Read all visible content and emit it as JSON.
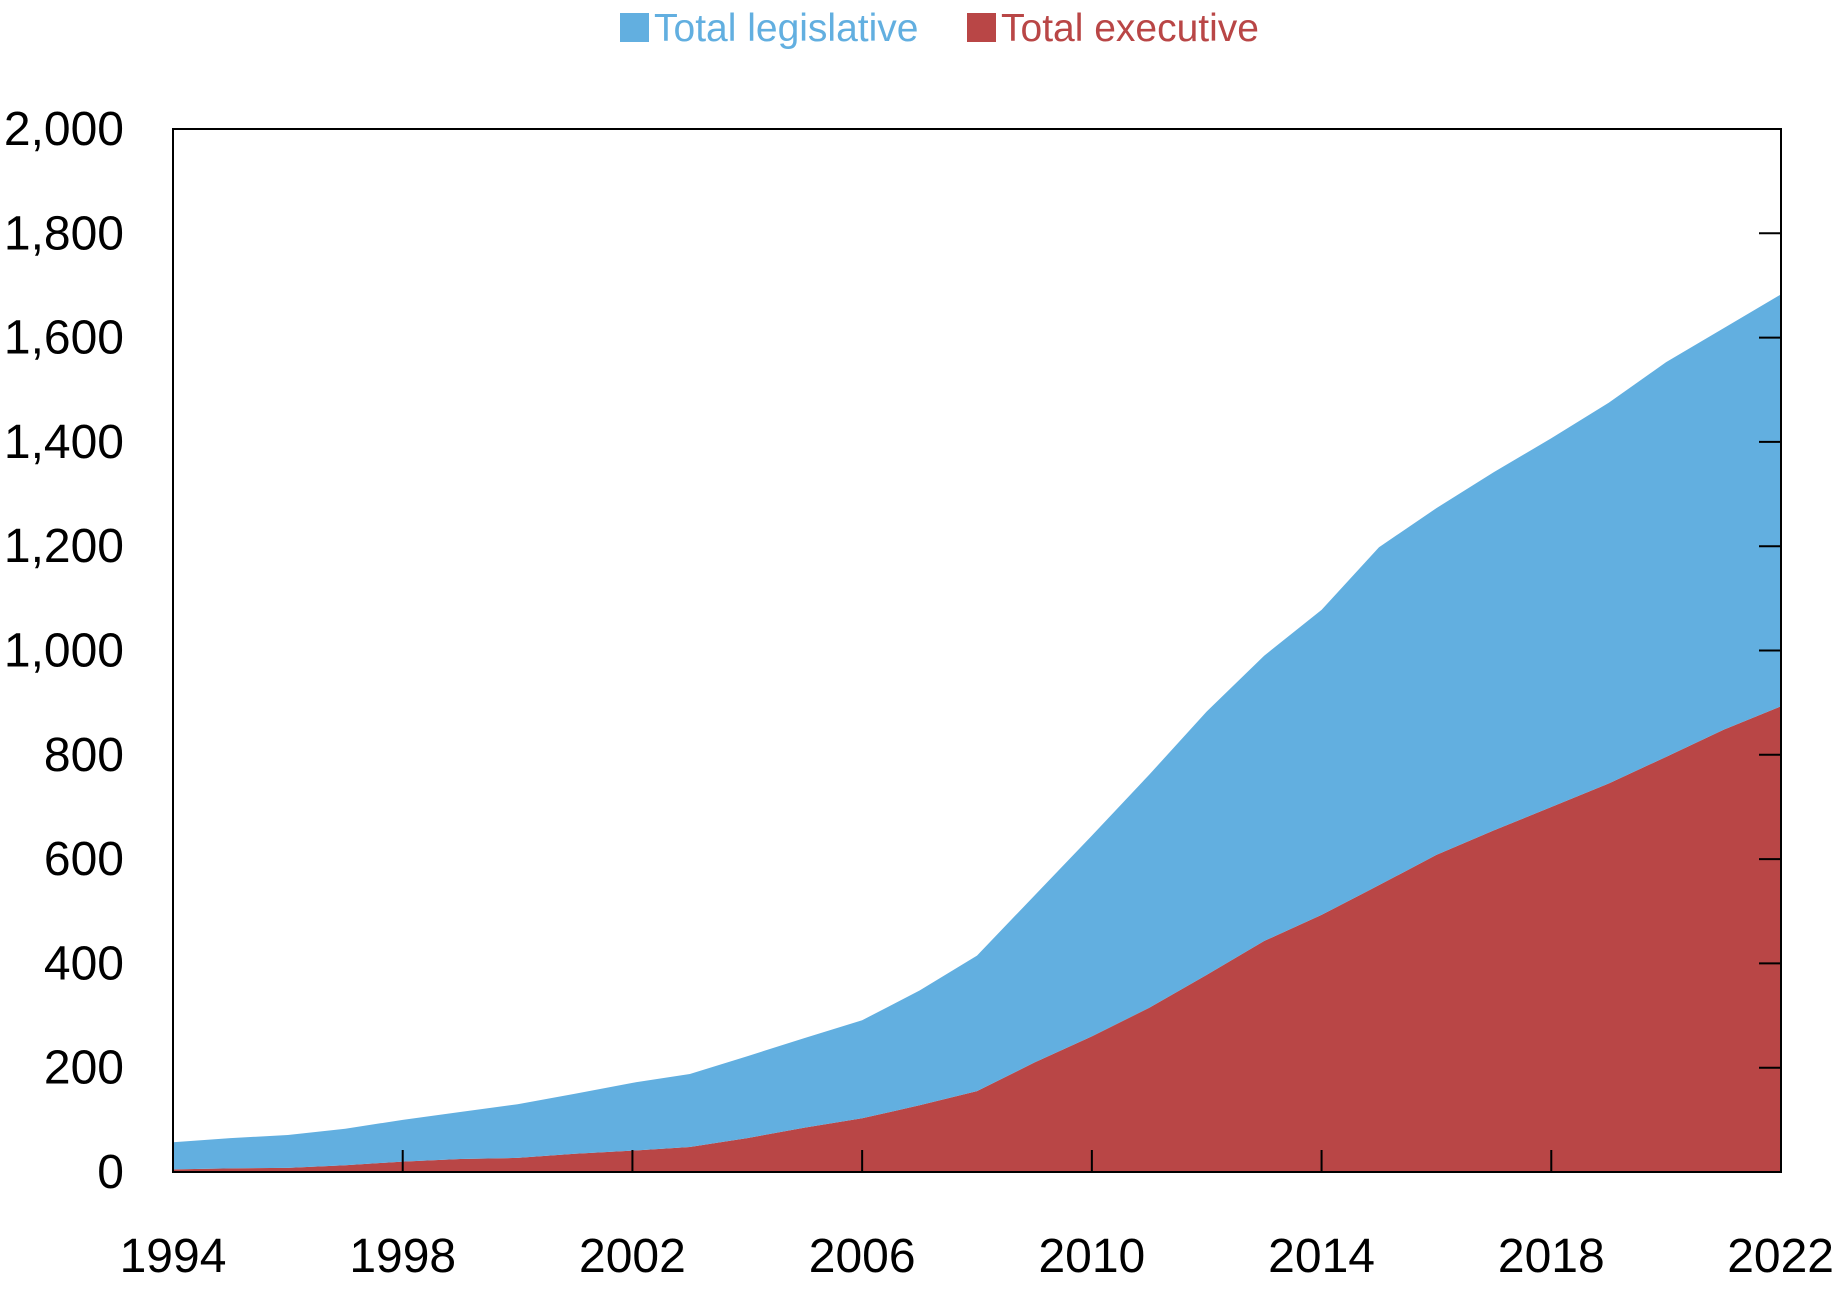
{
  "colors": {
    "legislative": "#62afe0",
    "executive": "#b94646",
    "axis": "#000000",
    "background": "#ffffff"
  },
  "chart_data": {
    "type": "area",
    "stacked": true,
    "title": "",
    "xlabel": "",
    "ylabel": "",
    "xlim": [
      1994,
      2022
    ],
    "ylim": [
      0,
      2000
    ],
    "x_ticks": [
      1994,
      1998,
      2002,
      2006,
      2010,
      2014,
      2018,
      2022
    ],
    "y_ticks": [
      0,
      200,
      400,
      600,
      800,
      1000,
      1200,
      1400,
      1600,
      1800,
      2000
    ],
    "y_tick_labels": [
      "0",
      "200",
      "400",
      "600",
      "800",
      "1,000",
      "1,200",
      "1,400",
      "1,600",
      "1,800",
      "2,000"
    ],
    "x_tick_labels": [
      "1994",
      "1998",
      "2002",
      "2006",
      "2010",
      "2014",
      "2018",
      "2022"
    ],
    "legend_position": "top-center",
    "grid": false,
    "x": [
      1994,
      1995,
      1996,
      1997,
      1998,
      1999,
      2000,
      2001,
      2002,
      2003,
      2004,
      2005,
      2006,
      2007,
      2008,
      2009,
      2010,
      2011,
      2012,
      2013,
      2014,
      2015,
      2016,
      2017,
      2018,
      2019,
      2020,
      2021,
      2022
    ],
    "series": [
      {
        "name": "Total executive",
        "color_key": "executive",
        "values": [
          5,
          7,
          8,
          13,
          20,
          25,
          27,
          35,
          41,
          48,
          65,
          85,
          103,
          128,
          155,
          210,
          260,
          315,
          378,
          443,
          493,
          550,
          608,
          655,
          700,
          745,
          796,
          848,
          893
        ]
      },
      {
        "name": "Total legislative",
        "color_key": "legislative",
        "values": [
          52,
          58,
          63,
          70,
          80,
          90,
          103,
          115,
          130,
          140,
          157,
          172,
          188,
          220,
          260,
          320,
          385,
          447,
          505,
          547,
          585,
          648,
          665,
          687,
          707,
          730,
          757,
          770,
          790
        ]
      }
    ]
  },
  "legend": {
    "items": [
      {
        "label": "Total legislative",
        "color_key": "legislative"
      },
      {
        "label": "Total executive",
        "color_key": "executive"
      }
    ]
  }
}
